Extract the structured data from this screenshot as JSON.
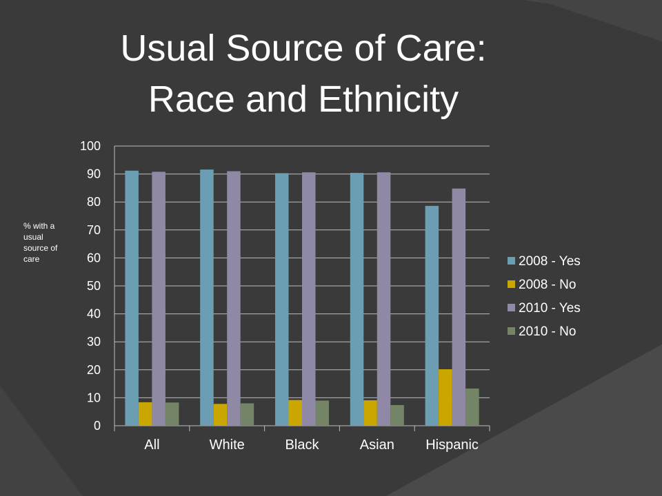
{
  "slide": {
    "title_line1": "Usual Source of Care:",
    "title_line2": "Race and Ethnicity"
  },
  "chart_data": {
    "type": "bar",
    "ylabel": "% with a usual source of care",
    "ylim": [
      0,
      100
    ],
    "yticks": [
      0,
      10,
      20,
      30,
      40,
      50,
      60,
      70,
      80,
      90,
      100
    ],
    "grid": true,
    "legend_position": "right",
    "categories": [
      "All",
      "White",
      "Black",
      "Asian",
      "Hispanic"
    ],
    "series": [
      {
        "name": "2008 - Yes",
        "color": "#6b9eb2",
        "values": [
          91.2,
          91.6,
          90.3,
          90.4,
          78.6
        ]
      },
      {
        "name": "2008 - No",
        "color": "#c9a600",
        "values": [
          8.4,
          7.8,
          9.2,
          9.1,
          20.2
        ]
      },
      {
        "name": "2010 - Yes",
        "color": "#8f89a6",
        "values": [
          90.8,
          91.0,
          90.6,
          90.6,
          84.8
        ]
      },
      {
        "name": "2010 - No",
        "color": "#738566",
        "values": [
          8.3,
          8.0,
          9.0,
          7.4,
          13.3
        ]
      }
    ]
  }
}
